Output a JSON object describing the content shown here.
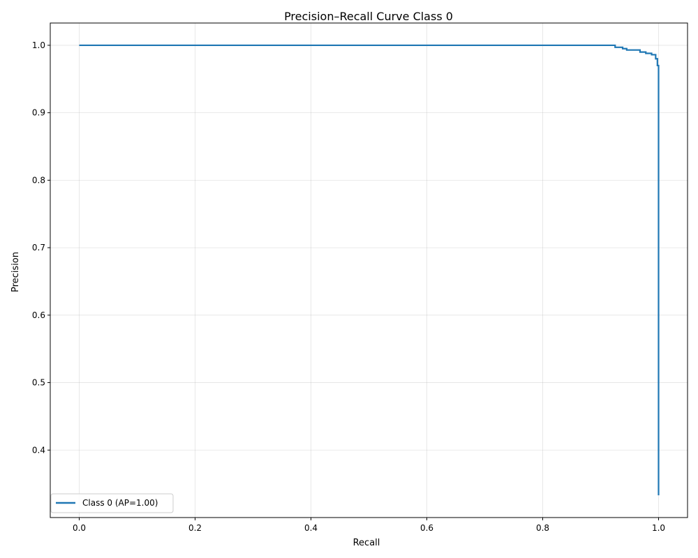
{
  "chart_data": {
    "type": "line",
    "title": "Precision–Recall Curve Class 0",
    "xlabel": "Recall",
    "ylabel": "Precision",
    "xlim": [
      -0.05,
      1.05
    ],
    "ylim": [
      0.3,
      1.033
    ],
    "xticks": [
      0.0,
      0.2,
      0.4,
      0.6,
      0.8,
      1.0
    ],
    "xtick_labels": [
      "0.0",
      "0.2",
      "0.4",
      "0.6",
      "0.8",
      "1.0"
    ],
    "yticks": [
      0.4,
      0.5,
      0.6,
      0.7,
      0.8,
      0.9,
      1.0
    ],
    "ytick_labels": [
      "0.4",
      "0.5",
      "0.6",
      "0.7",
      "0.8",
      "0.9",
      "1.0"
    ],
    "grid": true,
    "legend_position": "lower-left",
    "series": [
      {
        "name": "Class 0 (AP=1.00)",
        "color": "#1f77b4",
        "x": [
          0.0,
          0.925,
          0.925,
          0.938,
          0.938,
          0.945,
          0.945,
          0.968,
          0.968,
          0.978,
          0.978,
          0.988,
          0.988,
          0.995,
          0.995,
          0.998,
          0.998,
          1.0,
          1.0
        ],
        "y": [
          1.0,
          1.0,
          0.997,
          0.997,
          0.995,
          0.995,
          0.993,
          0.993,
          0.99,
          0.99,
          0.988,
          0.988,
          0.986,
          0.986,
          0.98,
          0.98,
          0.97,
          0.97,
          0.333
        ]
      }
    ]
  }
}
